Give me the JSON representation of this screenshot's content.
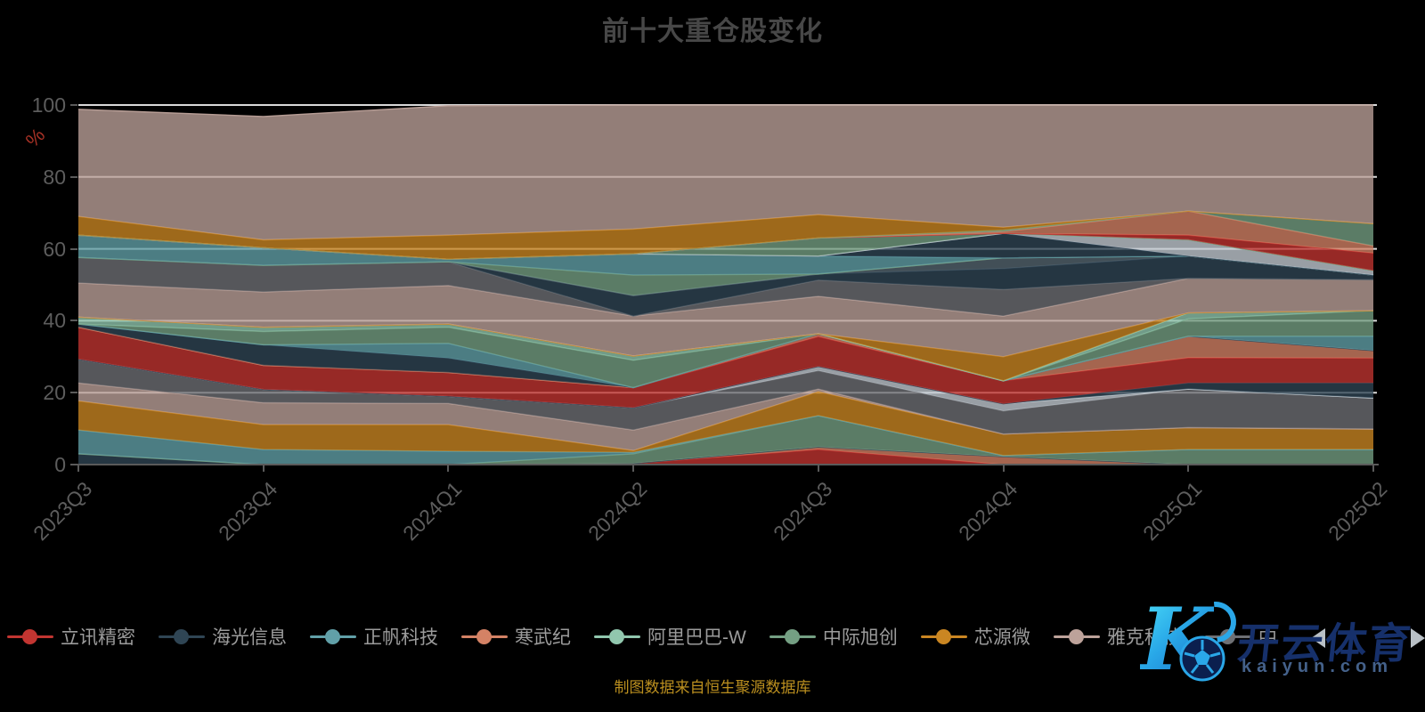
{
  "title": {
    "text": "前十大重仓股变化"
  },
  "caption": {
    "text": "制图数据来自恒生聚源数据库",
    "color": "#bb8f1f"
  },
  "axes": {
    "y": {
      "unit_label": "%",
      "unit_color": "#a93226",
      "min": 0,
      "max": 100,
      "ticks": [
        "0",
        "20",
        "40",
        "60",
        "80",
        "100"
      ]
    },
    "x": {
      "labels": [
        "2023Q3",
        "2023Q4",
        "2024Q1",
        "2024Q2",
        "2024Q3",
        "2024Q4",
        "2025Q1",
        "2025Q2"
      ]
    }
  },
  "legend": {
    "items": [
      {
        "label": "立讯精密",
        "color": "#c23531"
      },
      {
        "label": "海光信息",
        "color": "#2f4554"
      },
      {
        "label": "正帆科技",
        "color": "#61a0a8"
      },
      {
        "label": "寒武纪",
        "color": "#d48265"
      },
      {
        "label": "阿里巴巴-W",
        "color": "#91c7ae"
      },
      {
        "label": "中际旭创",
        "color": "#749f83"
      },
      {
        "label": "芯源微",
        "color": "#ca8622"
      },
      {
        "label": "雅克科技",
        "color": "#bda29a"
      },
      {
        "label": "中",
        "color": "#6e7074"
      }
    ],
    "prev_arrow": "left",
    "next_arrow": "right"
  },
  "watermark": {
    "logo_letter": "K",
    "brand": "开云体育",
    "url": "kaiyun.com"
  },
  "chart_data": {
    "type": "area",
    "stacked": true,
    "x": [
      "2023Q3",
      "2023Q4",
      "2024Q1",
      "2024Q2",
      "2024Q3",
      "2024Q4",
      "2025Q1",
      "2025Q2"
    ],
    "ylabel": "%",
    "ylim": [
      0,
      100
    ],
    "grid_values": [
      20,
      40,
      60,
      80,
      100
    ],
    "grid_color": "#d9d9d9",
    "area_opacity": 0.78,
    "bands": [
      {
        "id": "red-low",
        "color": "#c23531",
        "cum": [
          0,
          0,
          0,
          0.3,
          4.2,
          0,
          0,
          0
        ]
      },
      {
        "id": "salmon-low",
        "color": "#d48265",
        "cum": [
          0,
          0,
          0,
          0.3,
          4.9,
          2.2,
          0,
          0
        ]
      },
      {
        "id": "slate-low",
        "color": "#2f4554",
        "cum": [
          3,
          0,
          0,
          0.3,
          4.9,
          2.2,
          0,
          0
        ]
      },
      {
        "id": "green-low",
        "color": "#749f83",
        "cum": [
          3,
          0,
          0,
          3.0,
          13.6,
          2.5,
          4.2,
          4.2
        ]
      },
      {
        "id": "teal-low",
        "color": "#61a0a8",
        "cum": [
          9.6,
          4.2,
          3.7,
          3.4,
          13.6,
          2.5,
          4.2,
          4.2
        ]
      },
      {
        "id": "gold-low",
        "color": "#ca8622",
        "cum": [
          17.7,
          11.1,
          11.1,
          3.9,
          20.3,
          8.5,
          10.3,
          9.9
        ]
      },
      {
        "id": "mauve-low",
        "color": "#bda29a",
        "cum": [
          22.7,
          17.2,
          17.0,
          9.6,
          21.0,
          8.5,
          10.3,
          9.9
        ]
      },
      {
        "id": "gray-low",
        "color": "#6e7074",
        "cum": [
          29.3,
          20.9,
          19.0,
          15.8,
          26.1,
          14.9,
          21.0,
          18.5
        ]
      },
      {
        "id": "lightgray-low",
        "color": "#c4ccd3",
        "cum": [
          29.3,
          20.9,
          19.0,
          15.8,
          27.3,
          16.9,
          21.0,
          18.5
        ]
      },
      {
        "id": "navy-low",
        "color": "#2f4554",
        "cum": [
          29.3,
          20.9,
          19.0,
          15.8,
          27.3,
          16.9,
          22.7,
          22.7
        ]
      },
      {
        "id": "red-main",
        "color": "#c23531",
        "cum": [
          38.2,
          27.6,
          25.6,
          21.4,
          35.6,
          23.3,
          29.7,
          29.6
        ]
      },
      {
        "id": "salmon-mid",
        "color": "#d48265",
        "cum": [
          38.2,
          27.6,
          25.6,
          21.4,
          36.4,
          23.3,
          35.7,
          31.7
        ]
      },
      {
        "id": "navy-mid",
        "color": "#2f4554",
        "cum": [
          39.1,
          33.3,
          29.6,
          21.4,
          36.4,
          23.3,
          35.7,
          31.7
        ]
      },
      {
        "id": "teal-mid",
        "color": "#61a0a8",
        "cum": [
          39.1,
          33.3,
          33.7,
          21.4,
          36.4,
          23.3,
          35.7,
          35.7
        ]
      },
      {
        "id": "sage-mid",
        "color": "#749f83",
        "cum": [
          39.1,
          37.0,
          38.2,
          29.0,
          36.4,
          23.3,
          40.5,
          42.8
        ]
      },
      {
        "id": "lightgreen",
        "color": "#91c7ae",
        "cum": [
          41.0,
          38.2,
          39.1,
          30.2,
          36.4,
          23.3,
          42.2,
          42.8
        ]
      },
      {
        "id": "gold-mid",
        "color": "#ca8622",
        "cum": [
          41.0,
          38.2,
          39.1,
          30.2,
          36.4,
          30.0,
          42.2,
          42.8
        ]
      },
      {
        "id": "mauve-mid",
        "color": "#bda29a",
        "cum": [
          50.5,
          48.0,
          49.8,
          41.3,
          46.8,
          41.3,
          51.8,
          51.4
        ]
      },
      {
        "id": "gray-mid",
        "color": "#6e7074",
        "cum": [
          57.6,
          55.4,
          56.4,
          41.3,
          51.3,
          48.7,
          51.8,
          51.4
        ]
      },
      {
        "id": "slate-mid",
        "color": "#2f4554",
        "cum": [
          57.6,
          55.4,
          56.4,
          47.0,
          53.0,
          54.5,
          58.0,
          52.7
        ]
      },
      {
        "id": "bluegray",
        "color": "#546570",
        "cum": [
          57.6,
          55.4,
          56.4,
          47.0,
          53.0,
          57.5,
          58.0,
          52.7
        ]
      },
      {
        "id": "sage-high",
        "color": "#749f83",
        "cum": [
          57.6,
          55.4,
          56.4,
          52.7,
          53.0,
          57.5,
          58.0,
          52.7
        ]
      },
      {
        "id": "teal-high",
        "color": "#61a0a8",
        "cum": [
          63.8,
          60.3,
          57.1,
          58.6,
          58.0,
          57.5,
          58.0,
          52.7
        ]
      },
      {
        "id": "navy-high",
        "color": "#2f4554",
        "cum": [
          63.8,
          60.3,
          57.1,
          58.6,
          58.0,
          64.3,
          58.0,
          52.7
        ]
      },
      {
        "id": "lightgray-high",
        "color": "#c4ccd3",
        "cum": [
          63.8,
          60.3,
          57.1,
          58.6,
          58.0,
          64.3,
          62.5,
          53.9
        ]
      },
      {
        "id": "sage-top",
        "color": "#749f83",
        "cum": [
          63.8,
          60.3,
          57.1,
          58.6,
          63.0,
          64.3,
          62.5,
          53.9
        ]
      },
      {
        "id": "red-top",
        "color": "#c23531",
        "cum": [
          63.8,
          60.3,
          57.1,
          58.6,
          63.0,
          64.3,
          63.8,
          58.8
        ]
      },
      {
        "id": "salmon-top",
        "color": "#d48265",
        "cum": [
          63.8,
          60.3,
          57.1,
          58.6,
          63.0,
          64.8,
          70.5,
          60.8
        ]
      },
      {
        "id": "green-top",
        "color": "#749f83",
        "cum": [
          63.8,
          60.3,
          57.1,
          58.6,
          63.0,
          65.2,
          70.5,
          67.0
        ]
      },
      {
        "id": "gold-top",
        "color": "#ca8622",
        "cum": [
          69.0,
          62.5,
          63.8,
          65.5,
          69.5,
          66.0,
          70.5,
          67.0
        ]
      },
      {
        "id": "mauve-top",
        "color": "#bda29a",
        "cum": [
          98.8,
          96.8,
          99.8,
          100,
          100,
          100,
          100,
          100
        ]
      }
    ]
  }
}
